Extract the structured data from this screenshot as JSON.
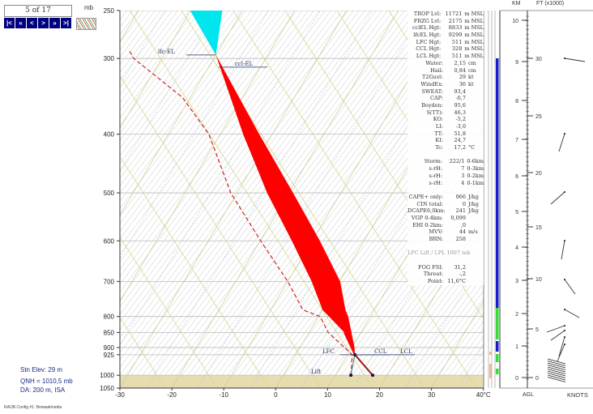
{
  "nav": {
    "counter": "5 of 17",
    "buttons": [
      "|<",
      "«",
      "<",
      ">",
      "»",
      ">|"
    ],
    "unit_label": "mb"
  },
  "stats": [
    [
      "TROP Lvl:",
      "11721",
      "m MSL"
    ],
    [
      "FRZG Lvl:",
      "2175",
      "m MSL"
    ],
    [
      "cclEL Hgt:",
      "8833",
      "m MSL"
    ],
    [
      "lfcEL Hgt:",
      "9299",
      "m MSL"
    ],
    [
      "LFC Hgt:",
      "511",
      "m MSL"
    ],
    [
      "CCL Hgt:",
      "328",
      "m MSL"
    ],
    [
      "LCL Hgt:",
      "511",
      "m MSL"
    ],
    [
      "Water:",
      "2,15",
      "cm"
    ],
    [
      "Hail:",
      "0,84",
      "cm"
    ],
    [
      "T2Gust:",
      "29",
      "kt"
    ],
    [
      "WindEx:",
      "36",
      "kt"
    ],
    [
      "SWEAT:",
      "93,4",
      ""
    ],
    [
      "CAP:",
      "-0,7",
      ""
    ],
    [
      "Boyden:",
      "95,6",
      ""
    ],
    [
      "S(TT):",
      "46,3",
      ""
    ],
    [
      "KO:",
      "-5,2",
      ""
    ],
    [
      "LI:",
      "-3,0",
      ""
    ],
    [
      "TT:",
      "51,8",
      ""
    ],
    [
      "KI:",
      "24,7",
      ""
    ],
    [
      "Tc:",
      "17,2",
      "°C"
    ],
    [
      "",
      "",
      ""
    ],
    [
      "Storm:",
      "222/1",
      "0-6km"
    ],
    [
      "s-rH:",
      "7",
      "0-3km"
    ],
    [
      "s-rH:",
      "3",
      "0-2km"
    ],
    [
      "s-rH:",
      "4",
      "0-1km"
    ],
    [
      "",
      "",
      ""
    ],
    [
      "CAPE+ only:",
      "966",
      "J/kg"
    ],
    [
      "CIN total:",
      "0",
      "J/kg"
    ],
    [
      "DCAPE6,0km:",
      "241",
      "J/kg"
    ],
    [
      "VGP 0-4km:",
      "0,099",
      ""
    ],
    [
      "EHI 0-2km:",
      ",0",
      ""
    ],
    [
      "MVV:",
      "44",
      "m/s"
    ],
    [
      "BRN:",
      "258",
      ""
    ],
    [
      "",
      "",
      ""
    ],
    [
      "LPC Lift / LPL 1007 mb",
      "",
      ""
    ],
    [
      "",
      "",
      ""
    ],
    [
      "FOG FSI:",
      "31,2",
      ""
    ],
    [
      "Threat:",
      "-,2",
      ""
    ],
    [
      "Point:",
      "11,6°C",
      ""
    ]
  ],
  "station": {
    "elev": "Stn Elev: 29 m",
    "qnh": "QNH = 1010,5 mb",
    "da": "DA: 200 m, ISA"
  },
  "config": "RAOB Config #1: Bewaakmedia",
  "right_panel": {
    "km_label": "KM",
    "ft_label": "FT (x1000)",
    "agl_label": "AGL",
    "knots_label": "KNOTS",
    "km_ticks": [
      "0",
      "1",
      "2",
      "3",
      "4",
      "5",
      "6",
      "7",
      "8",
      "9",
      "10"
    ],
    "ft_ticks": [
      "0",
      "5",
      "10",
      "15",
      "20",
      "25",
      "30"
    ]
  },
  "colors": {
    "cape": "#ff0000",
    "negative": "#00e5ee",
    "dewpoint": "#cc2222",
    "ground": "#e6dcb0",
    "level_bar": "#0000cc"
  },
  "chart_data": {
    "type": "skew-t",
    "pressure_ticks": [
      "250",
      "300",
      "400",
      "500",
      "600",
      "700",
      "800",
      "850",
      "900",
      "925",
      "1000",
      "1050"
    ],
    "temp_ticks": [
      "-30",
      "-20",
      "-10",
      "0",
      "10",
      "20",
      "30",
      "40°C"
    ],
    "xlim": [
      -30,
      40
    ],
    "ylim": [
      1050,
      250
    ],
    "environment_temp": [
      [
        1000,
        17.2
      ],
      [
        925,
        11.4
      ],
      [
        850,
        6.8
      ],
      [
        780,
        0.0
      ],
      [
        700,
        -5.4
      ],
      [
        600,
        -13.9
      ],
      [
        500,
        -24.2
      ],
      [
        400,
        -35.6
      ],
      [
        296,
        -50.0
      ]
    ],
    "parcel_temp": [
      [
        925,
        11.4
      ],
      [
        900,
        10.5
      ],
      [
        800,
        5.7
      ],
      [
        780,
        4.4
      ],
      [
        700,
        0.1
      ],
      [
        600,
        -8.5
      ],
      [
        500,
        -19.2
      ],
      [
        400,
        -32.5
      ],
      [
        296,
        -50.0
      ],
      [
        250,
        -56
      ]
    ],
    "dewpoint": [
      [
        1000,
        13.0
      ],
      [
        925,
        10.9
      ],
      [
        850,
        3.7
      ],
      [
        800,
        0.3
      ],
      [
        780,
        -3.8
      ],
      [
        700,
        -10.0
      ],
      [
        600,
        -19.9
      ],
      [
        500,
        -31.2
      ],
      [
        400,
        -42.2
      ],
      [
        348,
        -51.5
      ],
      [
        300,
        -65.4
      ],
      [
        292,
        -67
      ]
    ],
    "negative_area": [
      [
        250,
        -60.1
      ],
      [
        250,
        -53.9
      ],
      [
        296,
        -50.0
      ]
    ],
    "annotations": [
      {
        "text": "lfc-EL",
        "p": 296
      },
      {
        "text": "ccl-EL",
        "p": 310
      },
      {
        "text": "LFC",
        "p": 925
      },
      {
        "text": "CCL",
        "p": 925
      },
      {
        "text": "LCL",
        "p": 925
      },
      {
        "text": "Lift",
        "p": 1000
      }
    ]
  }
}
